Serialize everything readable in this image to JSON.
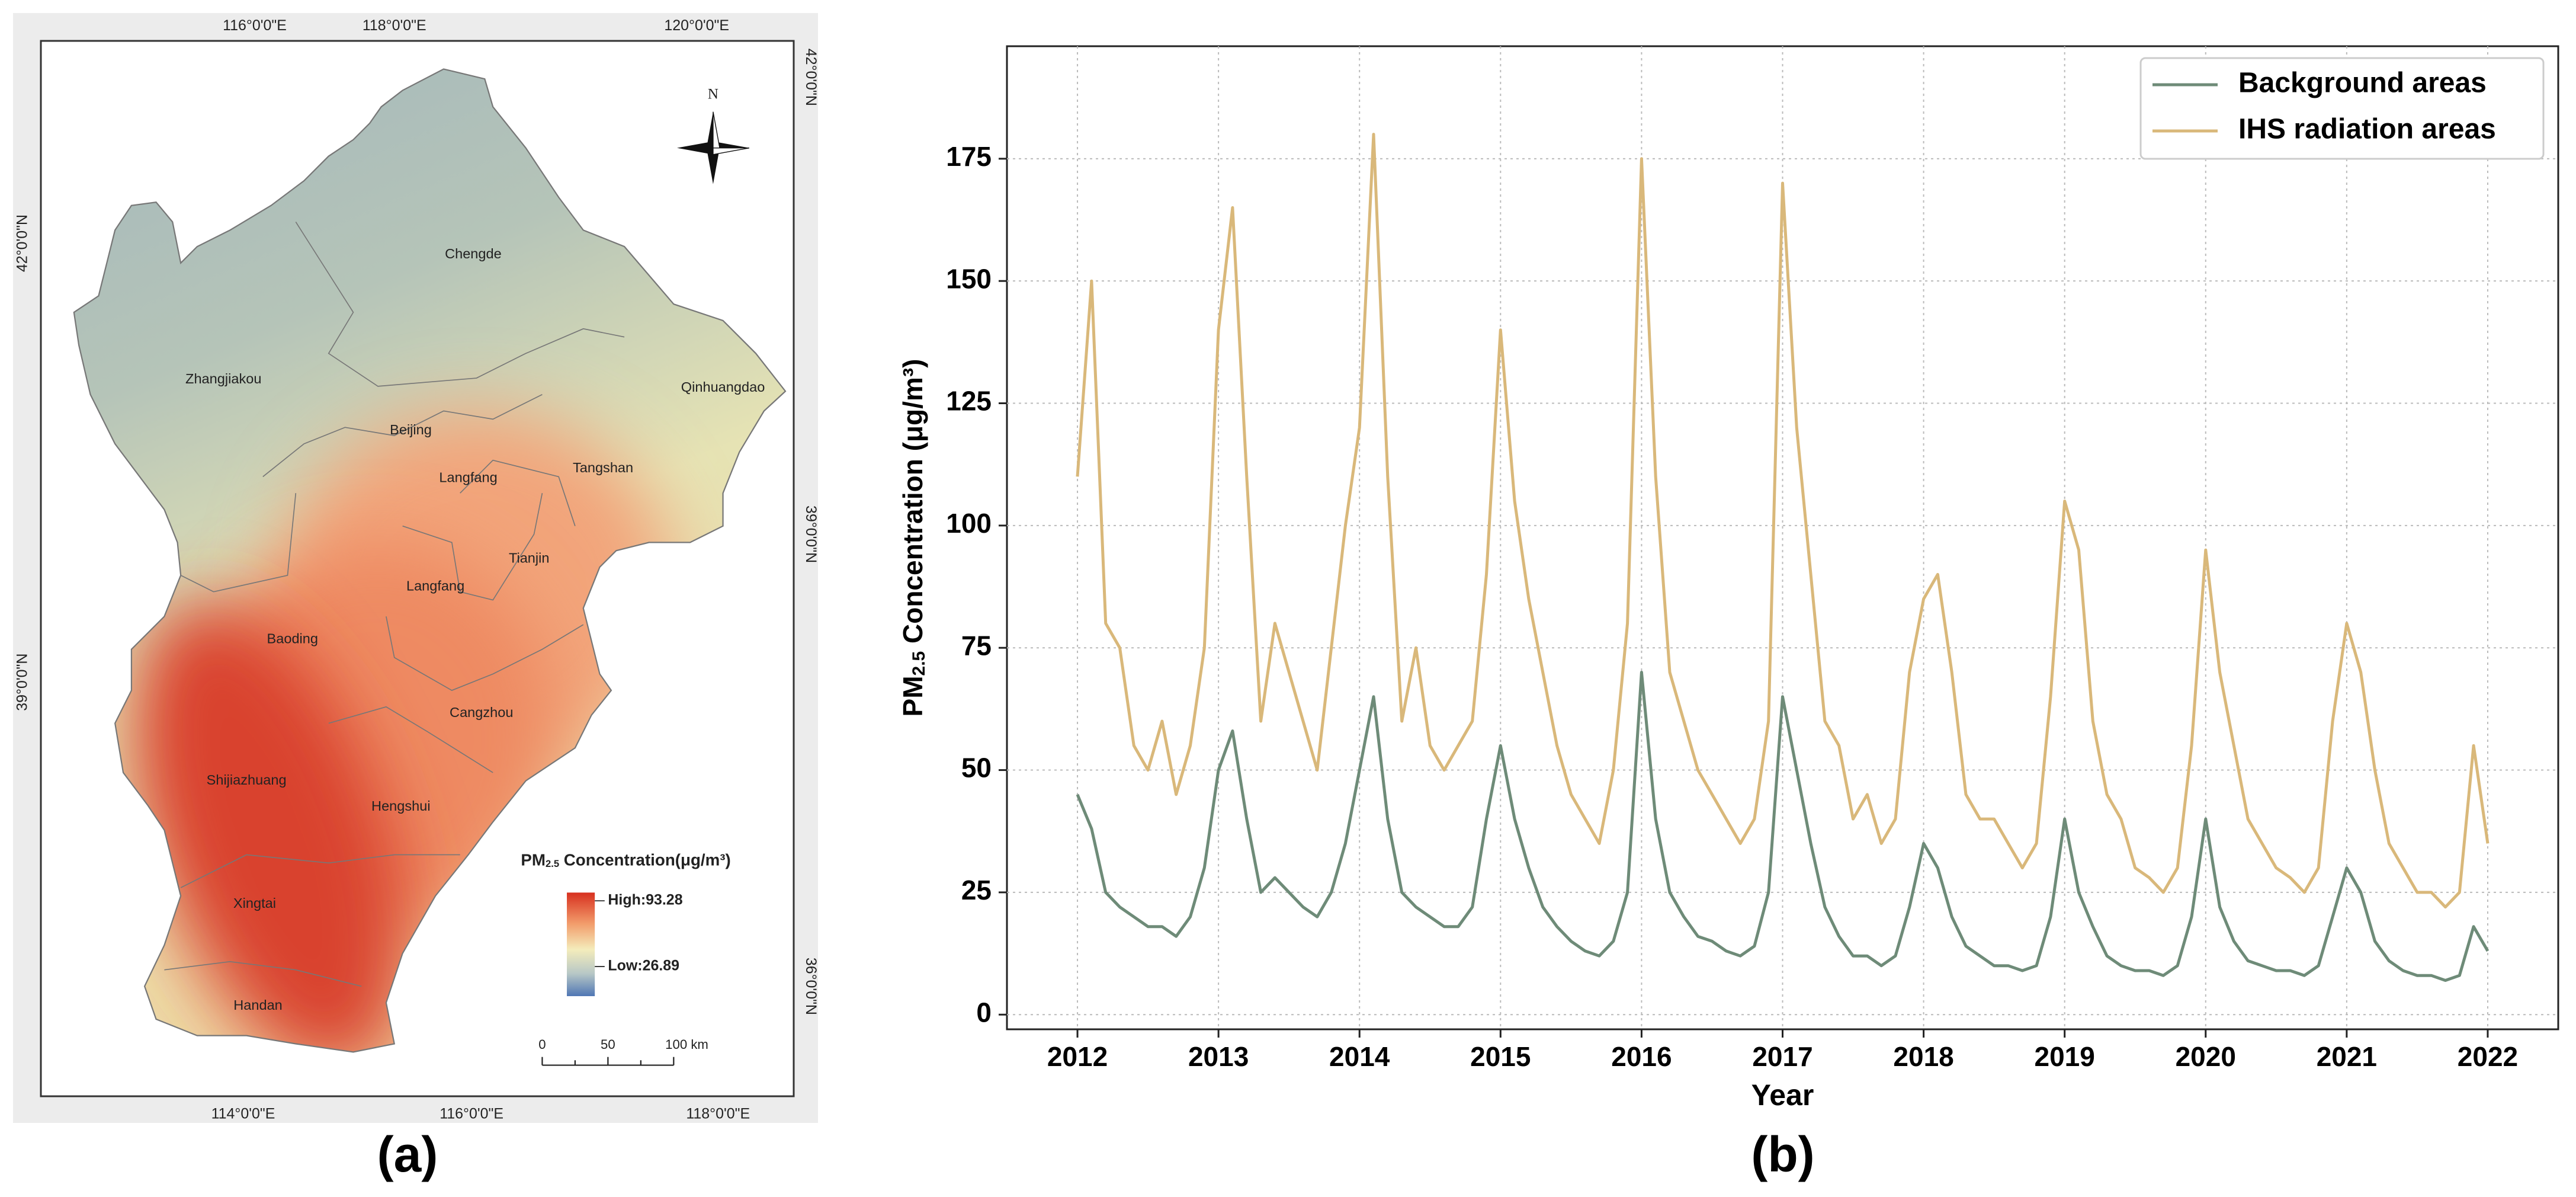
{
  "map": {
    "panel_label": "(a)",
    "lon_top": [
      "116°0'0\"E",
      "118°0'0\"E",
      "120°0'0\"E"
    ],
    "lon_bottom": [
      "114°0'0\"E",
      "116°0'0\"E",
      "118°0'0\"E"
    ],
    "lat_left": [
      "42°0'0\"N",
      "39°0'0\"N"
    ],
    "lat_right": [
      "42°0'0\"N",
      "39°0'0\"N",
      "36°0'0\"N"
    ],
    "north": "N",
    "cities": [
      "Chengde",
      "Zhangjiakou",
      "Qinhuangdao",
      "Beijing",
      "Langfang",
      "Tangshan",
      "Tianjin",
      "Langfang",
      "Baoding",
      "Cangzhou",
      "Shijiazhuang",
      "Hengshui",
      "Xingtai",
      "Handan"
    ],
    "legend_title": [
      "PM",
      "2.5",
      " Concentration(μg/m³)"
    ],
    "legend_high": "High:93.28",
    "legend_low": "Low:26.89",
    "scale_labels": [
      "0",
      "50",
      "100 km"
    ]
  },
  "chart_data": {
    "type": "line",
    "panel_label": "(b)",
    "x_label": "Year",
    "y_label": [
      "PM",
      "2.5",
      " Concentration (μg/m³)"
    ],
    "xlim": [
      2011.5,
      2022.5
    ],
    "xticks": [
      2012,
      2013,
      2014,
      2015,
      2016,
      2017,
      2018,
      2019,
      2020,
      2021,
      2022
    ],
    "ylim": [
      -3,
      198
    ],
    "yticks": [
      0,
      25,
      50,
      75,
      100,
      125,
      150,
      175
    ],
    "grid": true,
    "legend": "upper right",
    "x": [
      2012,
      2012.1,
      2012.2,
      2012.3,
      2012.4,
      2012.5,
      2012.6,
      2012.7,
      2012.8,
      2012.9,
      2013,
      2013.1,
      2013.2,
      2013.3,
      2013.4,
      2013.5,
      2013.6,
      2013.7,
      2013.8,
      2013.9,
      2014,
      2014.1,
      2014.2,
      2014.3,
      2014.4,
      2014.5,
      2014.6,
      2014.7,
      2014.8,
      2014.9,
      2015,
      2015.1,
      2015.2,
      2015.3,
      2015.4,
      2015.5,
      2015.6,
      2015.7,
      2015.8,
      2015.9,
      2016,
      2016.1,
      2016.2,
      2016.3,
      2016.4,
      2016.5,
      2016.6,
      2016.7,
      2016.8,
      2016.9,
      2017,
      2017.1,
      2017.2,
      2017.3,
      2017.4,
      2017.5,
      2017.6,
      2017.7,
      2017.8,
      2017.9,
      2018,
      2018.1,
      2018.2,
      2018.3,
      2018.4,
      2018.5,
      2018.6,
      2018.7,
      2018.8,
      2018.9,
      2019,
      2019.1,
      2019.2,
      2019.3,
      2019.4,
      2019.5,
      2019.6,
      2019.7,
      2019.8,
      2019.9,
      2020,
      2020.1,
      2020.2,
      2020.3,
      2020.4,
      2020.5,
      2020.6,
      2020.7,
      2020.8,
      2020.9,
      2021,
      2021.1,
      2021.2,
      2021.3,
      2021.4,
      2021.5,
      2021.6,
      2021.7,
      2021.8,
      2021.9,
      2022
    ],
    "series": [
      {
        "name": "Background areas",
        "color": "#6e8b78",
        "values": [
          45,
          38,
          25,
          22,
          20,
          18,
          18,
          16,
          20,
          30,
          50,
          58,
          40,
          25,
          28,
          25,
          22,
          20,
          25,
          35,
          50,
          65,
          40,
          25,
          22,
          20,
          18,
          18,
          22,
          40,
          55,
          40,
          30,
          22,
          18,
          15,
          13,
          12,
          15,
          25,
          70,
          40,
          25,
          20,
          16,
          15,
          13,
          12,
          14,
          25,
          65,
          50,
          35,
          22,
          16,
          12,
          12,
          10,
          12,
          22,
          35,
          30,
          20,
          14,
          12,
          10,
          10,
          9,
          10,
          20,
          40,
          25,
          18,
          12,
          10,
          9,
          9,
          8,
          10,
          20,
          40,
          22,
          15,
          11,
          10,
          9,
          9,
          8,
          10,
          20,
          30,
          25,
          15,
          11,
          9,
          8,
          8,
          7,
          8,
          18,
          13
        ]
      },
      {
        "name": "IHS radiation areas",
        "color": "#d9b87a",
        "values": [
          110,
          150,
          80,
          75,
          55,
          50,
          60,
          45,
          55,
          75,
          140,
          165,
          110,
          60,
          80,
          70,
          60,
          50,
          75,
          100,
          120,
          180,
          110,
          60,
          75,
          55,
          50,
          55,
          60,
          90,
          140,
          105,
          85,
          70,
          55,
          45,
          40,
          35,
          50,
          80,
          175,
          110,
          70,
          60,
          50,
          45,
          40,
          35,
          40,
          60,
          170,
          120,
          90,
          60,
          55,
          40,
          45,
          35,
          40,
          70,
          85,
          90,
          70,
          45,
          40,
          40,
          35,
          30,
          35,
          65,
          105,
          95,
          60,
          45,
          40,
          30,
          28,
          25,
          30,
          55,
          95,
          70,
          55,
          40,
          35,
          30,
          28,
          25,
          30,
          60,
          80,
          70,
          50,
          35,
          30,
          25,
          25,
          22,
          25,
          55,
          35
        ]
      }
    ]
  }
}
